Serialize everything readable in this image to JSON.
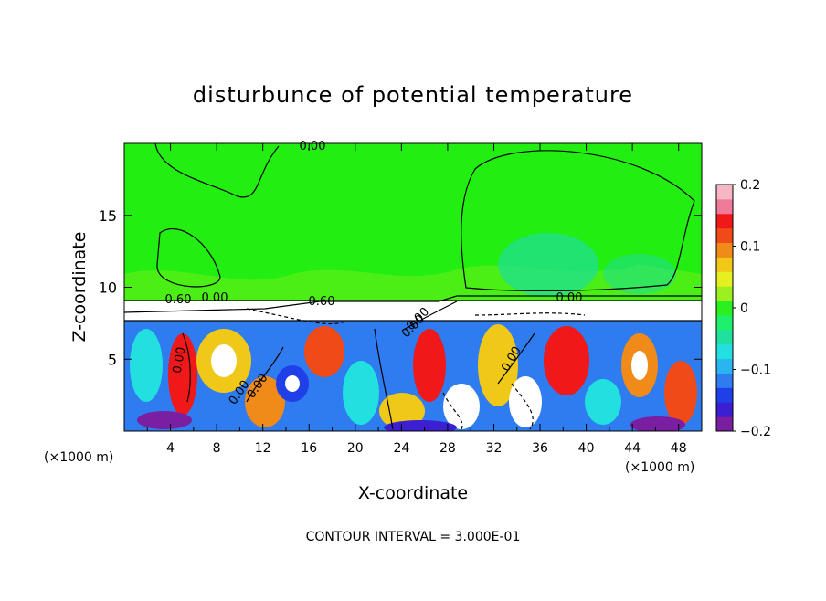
{
  "chart_data": {
    "type": "heatmap",
    "title": "disturbunce of potential temperature",
    "xlabel": "X-coordinate",
    "ylabel": "Z-coordinate",
    "x_unit": "(×1000 m)",
    "y_unit": "(×1000 m)",
    "xlim": [
      0,
      50
    ],
    "ylim": [
      0,
      20
    ],
    "x_ticks": [
      4,
      8,
      12,
      16,
      20,
      24,
      28,
      32,
      36,
      40,
      44,
      48
    ],
    "y_ticks": [
      5,
      10,
      15
    ],
    "colorbar": {
      "min": -0.2,
      "max": 0.2,
      "tick_values": [
        0.2,
        0.1,
        0,
        -0.1,
        -0.2
      ],
      "tick_labels": [
        "0.2",
        "0.1",
        "0",
        "−0.1",
        "−0.2"
      ],
      "colors": [
        "#7a1fa2",
        "#3b1fd1",
        "#1f3fe8",
        "#2f7bf0",
        "#2ab4f0",
        "#22e0e0",
        "#20e0a0",
        "#1ef06a",
        "#2af020",
        "#9cf020",
        "#e6f020",
        "#f0c818",
        "#f08a18",
        "#f04a18",
        "#f01818",
        "#f07a9a",
        "#f7b6c4"
      ]
    },
    "contour_labels": [
      "0.00",
      "0.00",
      "0.60",
      "0.60",
      "0.00",
      "0.00",
      "0.00",
      "0.00",
      "0.00",
      "0.00",
      "0.00"
    ],
    "footer": "CONTOUR INTERVAL = 3.000E-01"
  }
}
